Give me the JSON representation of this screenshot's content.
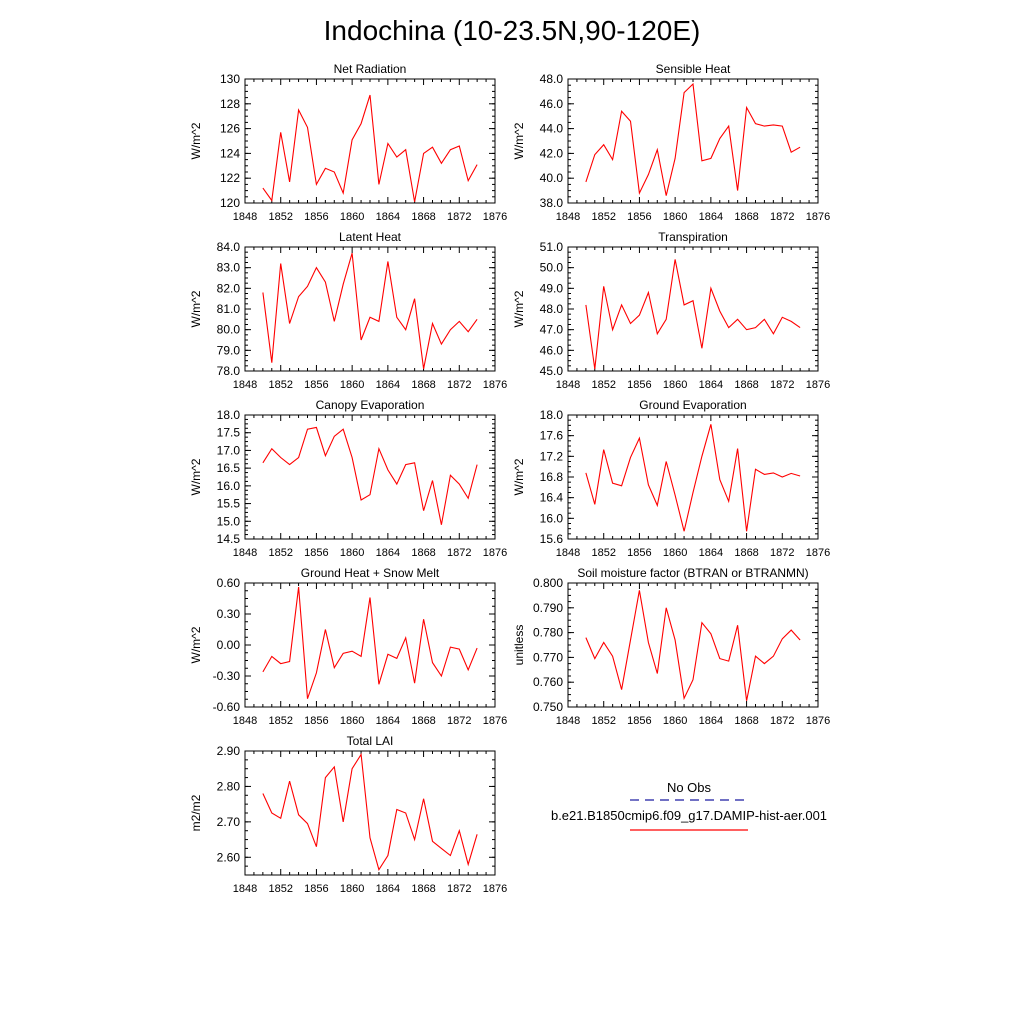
{
  "figure_title": "Indochina (10-23.5N,90-120E)",
  "legend": {
    "entries": [
      {
        "label": "No Obs",
        "color": "#1a1aa0",
        "style": "dashed"
      },
      {
        "label": "b.e21.B1850cmip6.f09_g17.DAMIP-hist-aer.001",
        "color": "#ff0000",
        "style": "solid"
      }
    ]
  },
  "chart_data": [
    {
      "type": "line",
      "title": "Net Radiation",
      "ylabel": "W/m^2",
      "xlim": [
        1848,
        1876
      ],
      "ylim": [
        120,
        130
      ],
      "xticks": [
        "1848",
        "1852",
        "1856",
        "1860",
        "1864",
        "1868",
        "1872",
        "1876"
      ],
      "yticks": [
        "120",
        "122",
        "124",
        "126",
        "128",
        "130"
      ],
      "series": [
        {
          "color": "#ff0000",
          "x": [
            1850,
            1851,
            1852,
            1853,
            1854,
            1855,
            1856,
            1857,
            1858,
            1859,
            1860,
            1861,
            1862,
            1863,
            1864,
            1865,
            1866,
            1867,
            1868,
            1869,
            1870,
            1871,
            1872,
            1873,
            1874
          ],
          "values": [
            121.2,
            120.2,
            125.7,
            121.7,
            127.5,
            126.1,
            121.5,
            122.8,
            122.5,
            120.8,
            125.1,
            126.4,
            128.7,
            121.5,
            124.8,
            123.7,
            124.3,
            120.1,
            124.0,
            124.5,
            123.2,
            124.3,
            124.6,
            121.8,
            123.1
          ]
        }
      ]
    },
    {
      "type": "line",
      "title": "Sensible Heat",
      "ylabel": "W/m^2",
      "xlim": [
        1848,
        1876
      ],
      "ylim": [
        38.0,
        48.0
      ],
      "xticks": [
        "1848",
        "1852",
        "1856",
        "1860",
        "1864",
        "1868",
        "1872",
        "1876"
      ],
      "yticks": [
        "38.0",
        "40.0",
        "42.0",
        "44.0",
        "46.0",
        "48.0"
      ],
      "series": [
        {
          "color": "#ff0000",
          "x": [
            1850,
            1851,
            1852,
            1853,
            1854,
            1855,
            1856,
            1857,
            1858,
            1859,
            1860,
            1861,
            1862,
            1863,
            1864,
            1865,
            1866,
            1867,
            1868,
            1869,
            1870,
            1871,
            1872,
            1873,
            1874
          ],
          "values": [
            39.7,
            41.9,
            42.7,
            41.5,
            45.4,
            44.6,
            38.8,
            40.3,
            42.3,
            38.6,
            41.6,
            46.9,
            47.6,
            41.4,
            41.6,
            43.2,
            44.2,
            39.0,
            45.7,
            44.4,
            44.2,
            44.3,
            44.2,
            42.1,
            42.5
          ]
        }
      ]
    },
    {
      "type": "line",
      "title": "Latent Heat",
      "ylabel": "W/m^2",
      "xlim": [
        1848,
        1876
      ],
      "ylim": [
        78.0,
        84.0
      ],
      "xticks": [
        "1848",
        "1852",
        "1856",
        "1860",
        "1864",
        "1868",
        "1872",
        "1876"
      ],
      "yticks": [
        "78.0",
        "79.0",
        "80.0",
        "81.0",
        "82.0",
        "83.0",
        "84.0"
      ],
      "series": [
        {
          "color": "#ff0000",
          "x": [
            1850,
            1851,
            1852,
            1853,
            1854,
            1855,
            1856,
            1857,
            1858,
            1859,
            1860,
            1861,
            1862,
            1863,
            1864,
            1865,
            1866,
            1867,
            1868,
            1869,
            1870,
            1871,
            1872,
            1873,
            1874
          ],
          "values": [
            81.8,
            78.4,
            83.2,
            80.3,
            81.6,
            82.1,
            83.0,
            82.3,
            80.4,
            82.2,
            83.7,
            79.5,
            80.6,
            80.4,
            83.3,
            80.6,
            80.0,
            81.5,
            78.1,
            80.3,
            79.3,
            80.0,
            80.4,
            79.9,
            80.5
          ]
        }
      ]
    },
    {
      "type": "line",
      "title": "Transpiration",
      "ylabel": "W/m^2",
      "xlim": [
        1848,
        1876
      ],
      "ylim": [
        45.0,
        51.0
      ],
      "xticks": [
        "1848",
        "1852",
        "1856",
        "1860",
        "1864",
        "1868",
        "1872",
        "1876"
      ],
      "yticks": [
        "45.0",
        "46.0",
        "47.0",
        "48.0",
        "49.0",
        "50.0",
        "51.0"
      ],
      "series": [
        {
          "color": "#ff0000",
          "x": [
            1850,
            1851,
            1852,
            1853,
            1854,
            1855,
            1856,
            1857,
            1858,
            1859,
            1860,
            1861,
            1862,
            1863,
            1864,
            1865,
            1866,
            1867,
            1868,
            1869,
            1870,
            1871,
            1872,
            1873,
            1874
          ],
          "values": [
            48.2,
            45.1,
            49.1,
            47.0,
            48.2,
            47.3,
            47.7,
            48.8,
            46.8,
            47.5,
            50.4,
            48.2,
            48.4,
            46.1,
            49.0,
            47.9,
            47.1,
            47.5,
            47.0,
            47.1,
            47.5,
            46.8,
            47.6,
            47.4,
            47.1
          ]
        }
      ]
    },
    {
      "type": "line",
      "title": "Canopy Evaporation",
      "ylabel": "W/m^2",
      "xlim": [
        1848,
        1876
      ],
      "ylim": [
        14.5,
        18.0
      ],
      "xticks": [
        "1848",
        "1852",
        "1856",
        "1860",
        "1864",
        "1868",
        "1872",
        "1876"
      ],
      "yticks": [
        "14.5",
        "15.0",
        "15.5",
        "16.0",
        "16.5",
        "17.0",
        "17.5",
        "18.0"
      ],
      "series": [
        {
          "color": "#ff0000",
          "x": [
            1850,
            1851,
            1852,
            1853,
            1854,
            1855,
            1856,
            1857,
            1858,
            1859,
            1860,
            1861,
            1862,
            1863,
            1864,
            1865,
            1866,
            1867,
            1868,
            1869,
            1870,
            1871,
            1872,
            1873,
            1874
          ],
          "values": [
            16.65,
            17.05,
            16.8,
            16.6,
            16.8,
            17.6,
            17.65,
            16.85,
            17.4,
            17.6,
            16.8,
            15.6,
            15.75,
            17.05,
            16.45,
            16.05,
            16.6,
            16.65,
            15.3,
            16.15,
            14.9,
            16.3,
            16.05,
            15.65,
            16.6
          ]
        }
      ]
    },
    {
      "type": "line",
      "title": "Ground Evaporation",
      "ylabel": "W/m^2",
      "xlim": [
        1848,
        1876
      ],
      "ylim": [
        15.6,
        18.0
      ],
      "xticks": [
        "1848",
        "1852",
        "1856",
        "1860",
        "1864",
        "1868",
        "1872",
        "1876"
      ],
      "yticks": [
        "15.6",
        "16.0",
        "16.4",
        "16.8",
        "17.2",
        "17.6",
        "18.0"
      ],
      "series": [
        {
          "color": "#ff0000",
          "x": [
            1850,
            1851,
            1852,
            1853,
            1854,
            1855,
            1856,
            1857,
            1858,
            1859,
            1860,
            1861,
            1862,
            1863,
            1864,
            1865,
            1866,
            1867,
            1868,
            1869,
            1870,
            1871,
            1872,
            1873,
            1874
          ],
          "values": [
            16.88,
            16.27,
            17.33,
            16.68,
            16.63,
            17.18,
            17.55,
            16.65,
            16.25,
            17.1,
            16.45,
            15.75,
            16.5,
            17.2,
            17.82,
            16.75,
            16.33,
            17.35,
            15.75,
            16.95,
            16.85,
            16.88,
            16.8,
            16.87,
            16.82
          ]
        }
      ]
    },
    {
      "type": "line",
      "title": "Ground Heat + Snow Melt",
      "ylabel": "W/m^2",
      "xlim": [
        1848,
        1876
      ],
      "ylim": [
        -0.6,
        0.6
      ],
      "xticks": [
        "1848",
        "1852",
        "1856",
        "1860",
        "1864",
        "1868",
        "1872",
        "1876"
      ],
      "yticks": [
        "-0.60",
        "-0.30",
        "0.00",
        "0.30",
        "0.60"
      ],
      "series": [
        {
          "color": "#ff0000",
          "x": [
            1850,
            1851,
            1852,
            1853,
            1854,
            1855,
            1856,
            1857,
            1858,
            1859,
            1860,
            1861,
            1862,
            1863,
            1864,
            1865,
            1866,
            1867,
            1868,
            1869,
            1870,
            1871,
            1872,
            1873,
            1874
          ],
          "values": [
            -0.26,
            -0.11,
            -0.18,
            -0.16,
            0.56,
            -0.52,
            -0.27,
            0.15,
            -0.22,
            -0.08,
            -0.06,
            -0.11,
            0.46,
            -0.38,
            -0.09,
            -0.13,
            0.07,
            -0.37,
            0.25,
            -0.17,
            -0.3,
            -0.02,
            -0.04,
            -0.24,
            -0.03
          ]
        }
      ]
    },
    {
      "type": "line",
      "title": "Soil moisture factor (BTRAN or BTRANMN)",
      "ylabel": "unitless",
      "xlim": [
        1848,
        1876
      ],
      "ylim": [
        0.75,
        0.8
      ],
      "xticks": [
        "1848",
        "1852",
        "1856",
        "1860",
        "1864",
        "1868",
        "1872",
        "1876"
      ],
      "yticks": [
        "0.750",
        "0.760",
        "0.770",
        "0.780",
        "0.790",
        "0.800"
      ],
      "series": [
        {
          "color": "#ff0000",
          "x": [
            1850,
            1851,
            1852,
            1853,
            1854,
            1855,
            1856,
            1857,
            1858,
            1859,
            1860,
            1861,
            1862,
            1863,
            1864,
            1865,
            1866,
            1867,
            1868,
            1869,
            1870,
            1871,
            1872,
            1873,
            1874
          ],
          "values": [
            0.778,
            0.7695,
            0.776,
            0.7705,
            0.757,
            0.777,
            0.797,
            0.776,
            0.7635,
            0.79,
            0.777,
            0.7535,
            0.761,
            0.784,
            0.7795,
            0.7695,
            0.7685,
            0.783,
            0.7525,
            0.7705,
            0.7675,
            0.7705,
            0.7775,
            0.781,
            0.777
          ]
        }
      ]
    },
    {
      "type": "line",
      "title": "Total LAI",
      "ylabel": "m2/m2",
      "xlim": [
        1848,
        1876
      ],
      "ylim": [
        2.55,
        2.9
      ],
      "xticks": [
        "1848",
        "1852",
        "1856",
        "1860",
        "1864",
        "1868",
        "1872",
        "1876"
      ],
      "yticks": [
        "2.60",
        "2.70",
        "2.80",
        "2.90"
      ],
      "series": [
        {
          "color": "#ff0000",
          "x": [
            1850,
            1851,
            1852,
            1853,
            1854,
            1855,
            1856,
            1857,
            1858,
            1859,
            1860,
            1861,
            1862,
            1863,
            1864,
            1865,
            1866,
            1867,
            1868,
            1869,
            1870,
            1871,
            1872,
            1873,
            1874
          ],
          "values": [
            2.78,
            2.725,
            2.71,
            2.815,
            2.72,
            2.695,
            2.63,
            2.825,
            2.855,
            2.7,
            2.85,
            2.89,
            2.655,
            2.565,
            2.605,
            2.735,
            2.725,
            2.65,
            2.765,
            2.645,
            2.625,
            2.605,
            2.675,
            2.58,
            2.665
          ]
        }
      ]
    }
  ]
}
